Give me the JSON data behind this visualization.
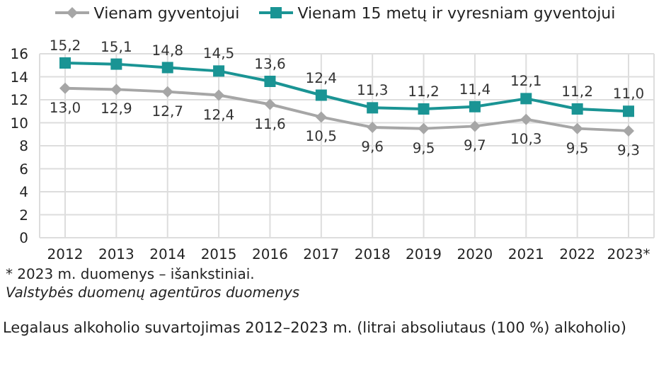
{
  "chart_data": {
    "type": "line",
    "title": "Legalaus alkoholio suvartojimas 2012–2023 m. (litrai absoliutaus (100 %) alkoholio)",
    "categories": [
      "2012",
      "2013",
      "2014",
      "2015",
      "2016",
      "2017",
      "2018",
      "2019",
      "2020",
      "2021",
      "2022",
      "2023*"
    ],
    "series": [
      {
        "name": "Vienam gyventojui",
        "color": "#a6a6a6",
        "marker": "diamond",
        "values": [
          13.0,
          12.9,
          12.7,
          12.4,
          11.6,
          10.5,
          9.6,
          9.5,
          9.7,
          10.3,
          9.5,
          9.3
        ],
        "value_labels": [
          "13,0",
          "12,9",
          "12,7",
          "12,4",
          "11,6",
          "10,5",
          "9,6",
          "9,5",
          "9,7",
          "10,3",
          "9,5",
          "9,3"
        ]
      },
      {
        "name": "Vienam 15 metų ir vyresniam gyventojui",
        "color": "#1a9494",
        "marker": "square",
        "values": [
          15.2,
          15.1,
          14.8,
          14.5,
          13.6,
          12.4,
          11.3,
          11.2,
          11.4,
          12.1,
          11.2,
          11.0
        ],
        "value_labels": [
          "15,2",
          "15,1",
          "14,8",
          "14,5",
          "13,6",
          "12,4",
          "11,3",
          "11,2",
          "11,4",
          "12,1",
          "11,2",
          "11,0"
        ]
      }
    ],
    "ylim": [
      0,
      16
    ],
    "yticks": [
      0,
      2,
      4,
      6,
      8,
      10,
      12,
      14,
      16
    ],
    "grid": true,
    "legend": "top",
    "annotations": [
      "* 2023 m. duomenys – išankstiniai.",
      "Valstybės duomenų agentūros duomenys"
    ]
  }
}
